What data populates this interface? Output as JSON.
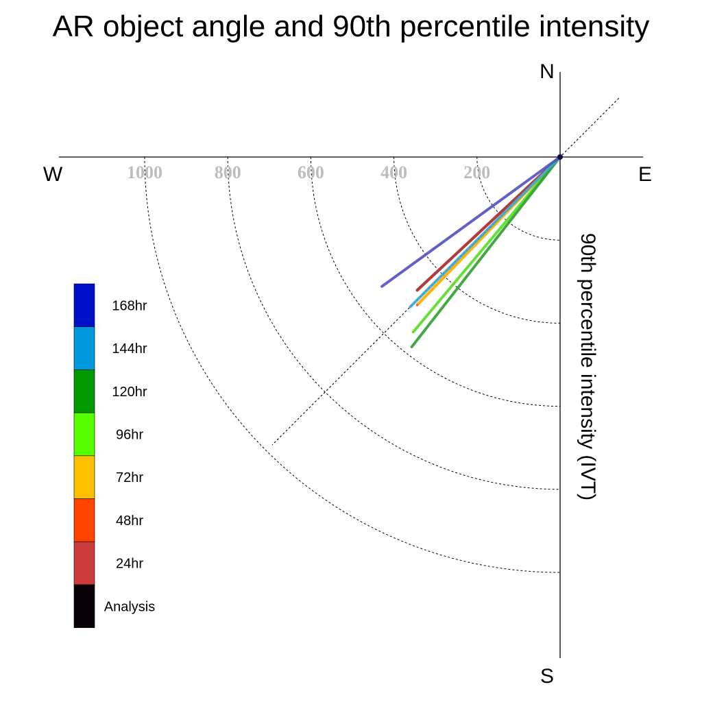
{
  "chart_data": {
    "type": "polar-quadrant-vectors",
    "title": "AR object angle and 90th percentile intensity",
    "ylabel": "90th percentile intensity (IVT)",
    "directions": {
      "north": "N",
      "south": "S",
      "east": "E",
      "west": "W"
    },
    "radial_ticks": [
      200,
      400,
      600,
      800,
      1000
    ],
    "radial_tick_labels": [
      "200",
      "400",
      "600",
      "800",
      "1000"
    ],
    "radial_range": [
      0,
      1200
    ],
    "guide_angle_deg": 45,
    "series": [
      {
        "name": "168hr",
        "color": "#5050c0",
        "legend_color": "#0010c8",
        "angle_deg": 36,
        "intensity": 530
      },
      {
        "name": "144hr",
        "color": "#3aa8d8",
        "legend_color": "#0099dd",
        "angle_deg": 45,
        "intensity": 510
      },
      {
        "name": "120hr",
        "color": "#2e9e2e",
        "legend_color": "#009900",
        "angle_deg": 52,
        "intensity": 580
      },
      {
        "name": "96hr",
        "color": "#55dd22",
        "legend_color": "#55ff00",
        "angle_deg": 50,
        "intensity": 550
      },
      {
        "name": "72hr",
        "color": "#ffc000",
        "legend_color": "#ffc000",
        "angle_deg": 46,
        "intensity": 490
      },
      {
        "name": "48hr",
        "color": "#ff4a10",
        "legend_color": "#ff4400",
        "angle_deg": 46,
        "intensity": 495
      },
      {
        "name": "24hr",
        "color": "#c84040",
        "legend_color": "#cc3b3b",
        "angle_deg": 43,
        "intensity": 470
      },
      {
        "name": "Analysis",
        "color": "#0a0008",
        "legend_color": "#0a0008",
        "angle_deg": 43,
        "intensity": 470
      }
    ],
    "legend": {
      "position": "left",
      "entries": [
        "168hr",
        "144hr",
        "120hr",
        "96hr",
        "72hr",
        "48hr",
        "24hr",
        "Analysis"
      ]
    }
  }
}
